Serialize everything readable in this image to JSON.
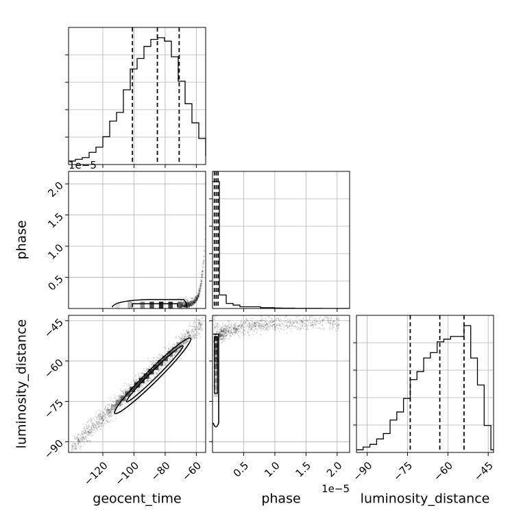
{
  "chart_data": {
    "type": "corner",
    "parameters": [
      "geocent_time",
      "phase",
      "luminosity_distance"
    ],
    "labels": {
      "geocent_time": "geocent_time",
      "phase": "phase",
      "luminosity_distance": "luminosity_distance"
    },
    "offset_text": "1e−5",
    "ranges": {
      "geocent_time": [
        -142,
        -54
      ],
      "phase": [
        0.0,
        2.2
      ],
      "luminosity_distance": [
        -94,
        -43
      ]
    },
    "ticks": {
      "geocent_time": [
        {
          "v": -120,
          "t": "−120"
        },
        {
          "v": -100,
          "t": "−100"
        },
        {
          "v": -80,
          "t": "−80"
        },
        {
          "v": -60,
          "t": "−60"
        }
      ],
      "phase": [
        {
          "v": 0.5,
          "t": "0.5"
        },
        {
          "v": 1.0,
          "t": "1.0"
        },
        {
          "v": 1.5,
          "t": "1.5"
        },
        {
          "v": 2.0,
          "t": "2.0"
        }
      ],
      "luminosity_distance": [
        {
          "v": -90,
          "t": "−90"
        },
        {
          "v": -75,
          "t": "−75"
        },
        {
          "v": -60,
          "t": "−60"
        },
        {
          "v": -45,
          "t": "−45"
        }
      ]
    },
    "quantiles": {
      "geocent_time": [
        -101,
        -85,
        -71
      ],
      "phase": [
        0.03,
        0.06,
        0.09
      ],
      "luminosity_distance": [
        -74,
        -63,
        -54
      ]
    },
    "histograms": {
      "geocent_time": {
        "edges_start": -142,
        "bin_width": 4.4,
        "counts": [
          2,
          3,
          4,
          7,
          10,
          16,
          25,
          30,
          43,
          55,
          61,
          68,
          72,
          73,
          71,
          62,
          48,
          35,
          24,
          15,
          5
        ]
      },
      "phase": {
        "edges_start": 0.0,
        "bin_width": 0.11,
        "counts": [
          75,
          8,
          3,
          2,
          1,
          1,
          1,
          0.5,
          0.5,
          0.3,
          0.2,
          0.2,
          0.1,
          0.1,
          0.1,
          0.1,
          0.05,
          0.05,
          0.05,
          0.05
        ]
      },
      "luminosity_distance": {
        "edges_start": -94,
        "bin_width": 2.5,
        "counts": [
          1,
          2,
          3,
          5,
          7,
          12,
          15,
          20,
          27,
          30,
          35,
          37,
          41,
          42,
          43,
          43,
          47,
          35,
          25,
          10,
          1
        ]
      }
    },
    "grid": true
  }
}
